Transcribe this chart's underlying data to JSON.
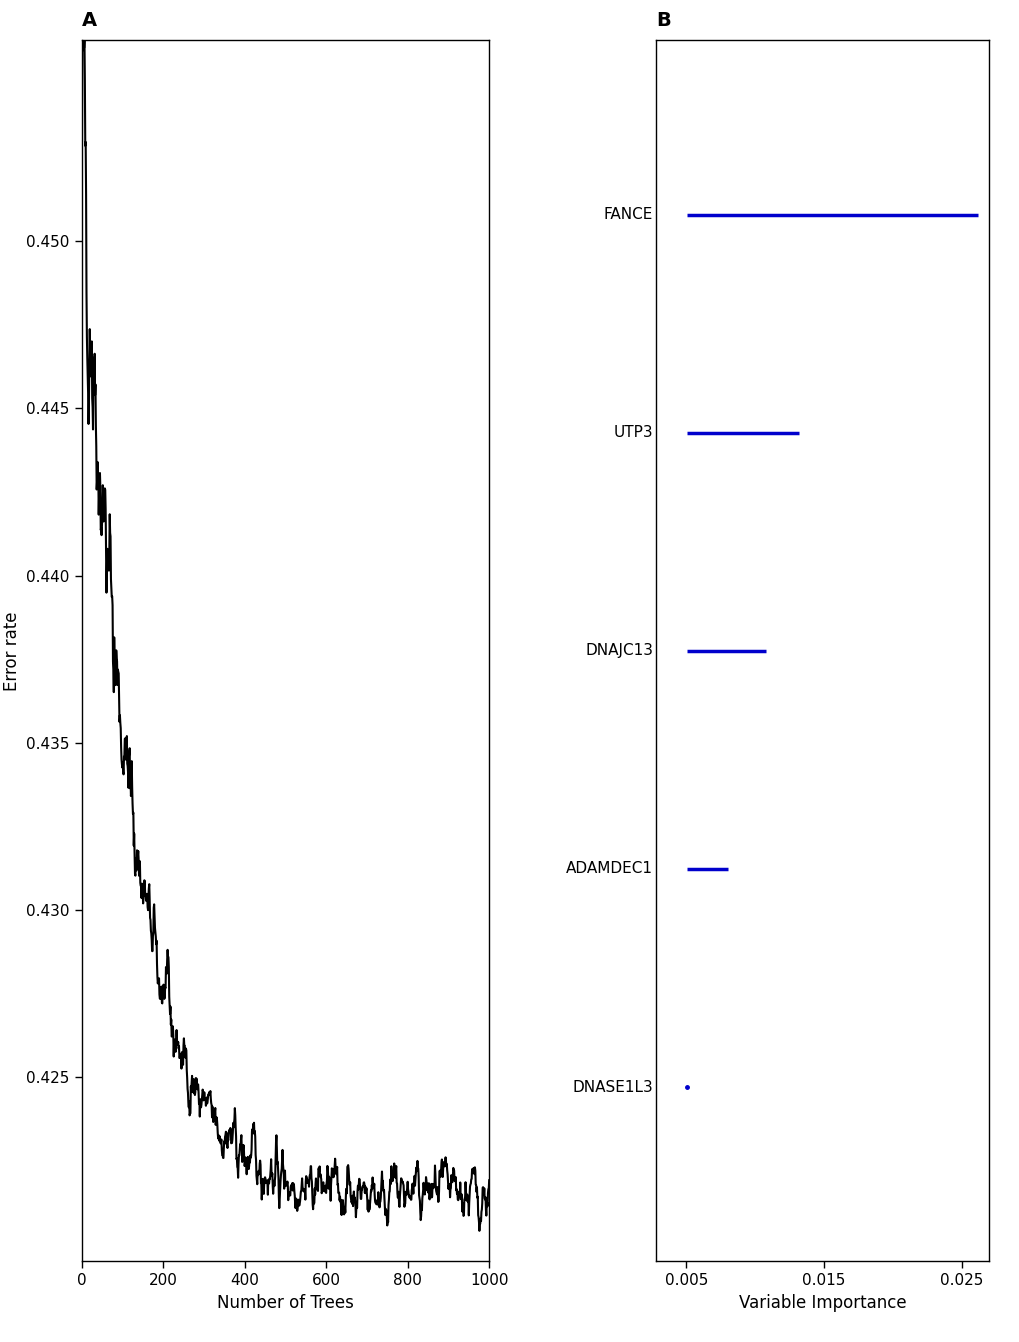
{
  "panel_a": {
    "title": "A",
    "xlabel": "Number of Trees",
    "ylabel": "Error rate",
    "xlim": [
      0,
      1000
    ],
    "ylim": [
      0.4195,
      0.456
    ],
    "yticks": [
      0.425,
      0.43,
      0.435,
      0.44,
      0.445,
      0.45
    ],
    "ytick_labels": [
      "0.425",
      "0.430",
      "0.435",
      "0.440",
      "0.445",
      "0.450"
    ],
    "xticks": [
      0,
      200,
      400,
      600,
      800,
      1000
    ],
    "line_color": "#000000",
    "line_width": 1.5
  },
  "panel_b": {
    "title": "B",
    "xlabel": "Variable Importance",
    "xlim": [
      0.0028,
      0.027
    ],
    "ylim": [
      0.2,
      5.8
    ],
    "xticks": [
      0.005,
      0.015,
      0.025
    ],
    "xtick_labels": [
      "0.005",
      "0.015",
      "0.025"
    ],
    "genes": [
      "FANCE",
      "UTP3",
      "DNAJC13",
      "ADAMDEC1",
      "DNASE1L3"
    ],
    "importance": [
      0.0262,
      0.0132,
      0.0108,
      0.008,
      0.00505
    ],
    "line_color": "#0000cc",
    "line_width": 2.5,
    "x_start": 0.00505
  },
  "background_color": "#ffffff",
  "tick_labelsize": 11,
  "axis_labelsize": 12,
  "title_fontsize": 14,
  "title_fontweight": "bold"
}
